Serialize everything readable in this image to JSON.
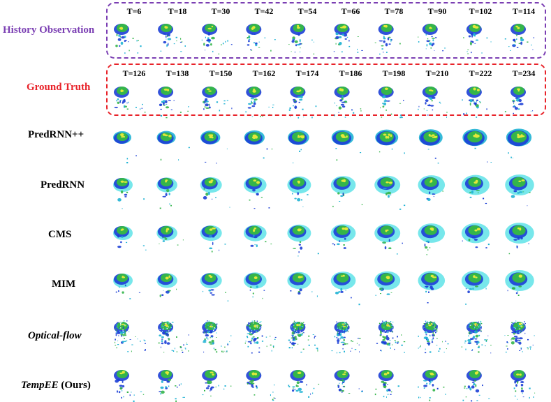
{
  "rows": [
    {
      "key": "history",
      "label": "History Observation",
      "color": "#7b3fb3",
      "times": [
        "T=6",
        "T=18",
        "T=30",
        "T=42",
        "T=54",
        "T=66",
        "T=78",
        "T=90",
        "T=102",
        "T=114"
      ]
    },
    {
      "key": "ground_truth",
      "label": "Ground Truth",
      "color": "#e8232a",
      "times": [
        "T=126",
        "T=138",
        "T=150",
        "T=162",
        "T=174",
        "T=186",
        "T=198",
        "T=210",
        "T=222",
        "T=234"
      ]
    },
    {
      "key": "predrnnpp",
      "label": "PredRNN++"
    },
    {
      "key": "predrnn",
      "label": "PredRNN"
    },
    {
      "key": "cms",
      "label": "CMS"
    },
    {
      "key": "mim",
      "label": "MIM"
    },
    {
      "key": "optical_flow",
      "label": "Optical-flow"
    },
    {
      "key": "tempee",
      "label_italic": "TempEE",
      "label_suffix": " (Ours)"
    }
  ],
  "palette": {
    "light": "#5fe3e8",
    "mid": "#1fb2d4",
    "blue": "#1c3fd6",
    "green": "#34b54a",
    "yellow": "#e3e83a"
  }
}
